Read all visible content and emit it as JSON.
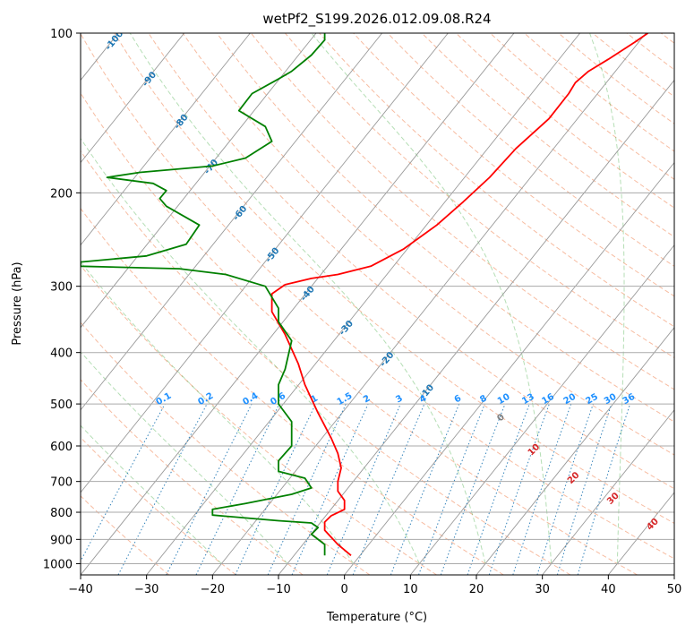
{
  "chart_data": {
    "type": "line",
    "title": "wetPf2_S199.2026.012.09.08.R24",
    "xlabel": "Temperature (°C)",
    "ylabel": "Pressure (hPa)",
    "xlim": [
      -40,
      50
    ],
    "ylim": [
      1050,
      100
    ],
    "yscale": "log",
    "x_ticks": [
      -40,
      -30,
      -20,
      -10,
      0,
      10,
      20,
      30,
      40,
      50
    ],
    "y_ticks": [
      1000,
      900,
      800,
      700,
      600,
      500,
      400,
      300,
      200,
      100
    ],
    "grid": "horizontal at pressure ticks",
    "background": {
      "isotherm_labels": [
        "-100",
        "-90",
        "-80",
        "-70",
        "-60",
        "-50",
        "-40",
        "-30",
        "-20",
        "-10"
      ],
      "isotherm_label_color": "#1f77b4",
      "mixing_ratio_labels": [
        "0.1",
        "0.2",
        "0.4",
        "0.6",
        "1",
        "1.5",
        "2",
        "3",
        "4",
        "6",
        "8",
        "10",
        "13",
        "16",
        "20",
        "25",
        "30",
        "36"
      ],
      "mixing_ratio_values": [
        0.1,
        0.2,
        0.4,
        0.6,
        1,
        1.5,
        2,
        3,
        4,
        6,
        8,
        10,
        13,
        16,
        20,
        25,
        30,
        36
      ],
      "mixing_ratio_label_color": "#1e90ff",
      "moist_adiabat_labels": [
        "0",
        "10",
        "20",
        "30",
        "40"
      ],
      "moist_adiabat_label_colors": [
        "#808080",
        "#d62728",
        "#d62728",
        "#d62728",
        "#d62728"
      ]
    },
    "series": [
      {
        "color": "#ff0000",
        "points": [
          [
            1,
            965
          ],
          [
            -1,
            920
          ],
          [
            -3,
            865
          ],
          [
            -3,
            835
          ],
          [
            -2,
            812
          ],
          [
            0,
            790
          ],
          [
            0,
            760
          ],
          [
            -1,
            730
          ],
          [
            -1,
            700
          ],
          [
            -0.5,
            660
          ],
          [
            -1,
            620
          ],
          [
            -2,
            580
          ],
          [
            -4,
            520
          ],
          [
            -6,
            460
          ],
          [
            -7,
            420
          ],
          [
            -9,
            370
          ],
          [
            -11,
            335
          ],
          [
            -11,
            310
          ],
          [
            -9,
            298
          ],
          [
            -5,
            290
          ],
          [
            -1,
            285
          ],
          [
            4,
            275
          ],
          [
            9,
            255
          ],
          [
            14,
            230
          ],
          [
            18,
            208
          ],
          [
            22,
            187
          ],
          [
            26,
            165
          ],
          [
            31,
            145
          ],
          [
            34,
            130
          ],
          [
            35,
            124
          ],
          [
            37,
            118
          ],
          [
            40,
            112
          ],
          [
            44,
            104
          ],
          [
            46,
            100
          ]
        ]
      },
      {
        "color": "#008000",
        "points": [
          [
            -3,
            965
          ],
          [
            -3,
            920
          ],
          [
            -5,
            880
          ],
          [
            -4,
            855
          ],
          [
            -5,
            838
          ],
          [
            -10,
            830
          ],
          [
            -15,
            820
          ],
          [
            -20,
            810
          ],
          [
            -20,
            790
          ],
          [
            -15,
            770
          ],
          [
            -8,
            740
          ],
          [
            -5,
            720
          ],
          [
            -6,
            690
          ],
          [
            -10,
            670
          ],
          [
            -10,
            640
          ],
          [
            -8,
            600
          ],
          [
            -8,
            580
          ],
          [
            -8,
            540
          ],
          [
            -10,
            500
          ],
          [
            -10,
            460
          ],
          [
            -9,
            430
          ],
          [
            -8,
            380
          ],
          [
            -10,
            350
          ],
          [
            -10,
            330
          ],
          [
            -12,
            300
          ],
          [
            -18,
            285
          ],
          [
            -25,
            278
          ],
          [
            -40,
            275
          ],
          [
            -40,
            270
          ],
          [
            -30,
            263
          ],
          [
            -24,
            250
          ],
          [
            -22,
            230
          ],
          [
            -27,
            212
          ],
          [
            -28,
            205
          ],
          [
            -27,
            198
          ],
          [
            -29,
            192
          ],
          [
            -36,
            187
          ],
          [
            -31,
            183
          ],
          [
            -20,
            178
          ],
          [
            -15,
            172
          ],
          [
            -11,
            160
          ],
          [
            -12,
            150
          ],
          [
            -16,
            140
          ],
          [
            -14,
            130
          ],
          [
            -10,
            122
          ],
          [
            -8,
            118
          ],
          [
            -5,
            110
          ],
          [
            -3,
            103
          ],
          [
            -3,
            100
          ]
        ]
      }
    ]
  }
}
